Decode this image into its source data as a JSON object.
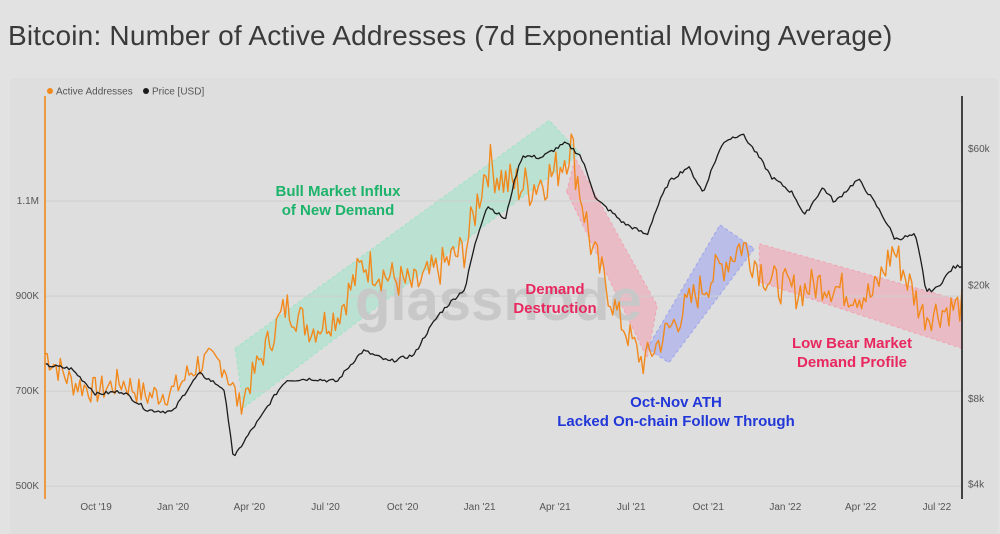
{
  "title": "Bitcoin: Number of Active Addresses (7d Exponential Moving Average)",
  "watermark": "glassnode",
  "colors": {
    "active": "#f2891d",
    "price": "#1c1c1c",
    "green_band": "#9de3c6",
    "red_band": "#f2a0b0",
    "blue_band": "#9aa3ee",
    "green_text": "#1db36b",
    "red_text": "#e8285e",
    "blue_text": "#2237d8"
  },
  "legend": [
    {
      "label": "Active Addresses",
      "color": "#f2891d"
    },
    {
      "label": "Price [USD]",
      "color": "#1c1c1c"
    }
  ],
  "annotations": [
    {
      "lines": [
        "Bull Market Influx",
        "of New Demand"
      ],
      "color": "#1db36b"
    },
    {
      "lines": [
        "Demand",
        "Destruction"
      ],
      "color": "#e8285e"
    },
    {
      "lines": [
        "Low Bear Market",
        "Demand Profile"
      ],
      "color": "#e8285e"
    },
    {
      "lines": [
        "Oct-Nov ATH",
        "Lacked On-chain Follow Through"
      ],
      "color": "#2237d8"
    }
  ],
  "chart_data": {
    "type": "line",
    "x_tick_labels": [
      "Oct '19",
      "Jan '20",
      "Apr '20",
      "Jul '20",
      "Oct '20",
      "Jan '21",
      "Apr '21",
      "Jul '21",
      "Oct '21",
      "Jan '22",
      "Apr '22",
      "Jul '22"
    ],
    "x_range": [
      "2019-08-01",
      "2022-07-31"
    ],
    "y_left": {
      "ticks": [
        "500K",
        "700K",
        "900K",
        "1.1M"
      ],
      "tick_values": [
        500000,
        700000,
        900000,
        1100000
      ],
      "range": [
        490000,
        1300000
      ]
    },
    "y_right": {
      "ticks": [
        "$4k",
        "$8k",
        "$20k",
        "$60k"
      ],
      "tick_values": [
        4000,
        8000,
        20000,
        60000
      ],
      "scale": "log",
      "range": [
        3800,
        85000
      ]
    },
    "series": [
      {
        "name": "Active Addresses",
        "axis": "left",
        "points": [
          [
            "2019-08-01",
            780000
          ],
          [
            "2019-09-01",
            720000
          ],
          [
            "2019-10-01",
            700000
          ],
          [
            "2019-11-01",
            720000
          ],
          [
            "2019-12-01",
            690000
          ],
          [
            "2020-01-01",
            700000
          ],
          [
            "2020-02-01",
            760000
          ],
          [
            "2020-03-01",
            760000
          ],
          [
            "2020-03-20",
            670000
          ],
          [
            "2020-04-15",
            770000
          ],
          [
            "2020-05-15",
            880000
          ],
          [
            "2020-06-15",
            830000
          ],
          [
            "2020-07-15",
            860000
          ],
          [
            "2020-08-15",
            970000
          ],
          [
            "2020-09-15",
            940000
          ],
          [
            "2020-10-15",
            920000
          ],
          [
            "2020-11-15",
            960000
          ],
          [
            "2020-12-15",
            1000000
          ],
          [
            "2021-01-10",
            1180000
          ],
          [
            "2021-02-01",
            1140000
          ],
          [
            "2021-03-01",
            1130000
          ],
          [
            "2021-04-01",
            1160000
          ],
          [
            "2021-04-20",
            1220000
          ],
          [
            "2021-05-15",
            1000000
          ],
          [
            "2021-06-15",
            860000
          ],
          [
            "2021-07-15",
            760000
          ],
          [
            "2021-08-15",
            830000
          ],
          [
            "2021-09-15",
            900000
          ],
          [
            "2021-10-15",
            960000
          ],
          [
            "2021-11-10",
            1010000
          ],
          [
            "2021-12-15",
            930000
          ],
          [
            "2022-01-15",
            910000
          ],
          [
            "2022-02-15",
            930000
          ],
          [
            "2022-03-15",
            910000
          ],
          [
            "2022-04-15",
            900000
          ],
          [
            "2022-05-10",
            1000000
          ],
          [
            "2022-06-15",
            860000
          ],
          [
            "2022-07-31",
            880000
          ]
        ]
      },
      {
        "name": "Price [USD]",
        "axis": "right",
        "points": [
          [
            "2019-08-01",
            10500
          ],
          [
            "2019-09-01",
            10200
          ],
          [
            "2019-10-01",
            8300
          ],
          [
            "2019-11-01",
            8500
          ],
          [
            "2019-12-01",
            7300
          ],
          [
            "2020-01-01",
            7200
          ],
          [
            "2020-02-01",
            9800
          ],
          [
            "2020-03-01",
            8700
          ],
          [
            "2020-03-13",
            4900
          ],
          [
            "2020-04-15",
            6900
          ],
          [
            "2020-05-15",
            9300
          ],
          [
            "2020-06-15",
            9400
          ],
          [
            "2020-07-15",
            9200
          ],
          [
            "2020-08-15",
            11800
          ],
          [
            "2020-09-15",
            10800
          ],
          [
            "2020-10-15",
            11400
          ],
          [
            "2020-11-15",
            16000
          ],
          [
            "2020-12-15",
            19500
          ],
          [
            "2021-01-10",
            38000
          ],
          [
            "2021-02-01",
            34000
          ],
          [
            "2021-02-21",
            57000
          ],
          [
            "2021-03-15",
            56000
          ],
          [
            "2021-04-14",
            63000
          ],
          [
            "2021-05-01",
            57000
          ],
          [
            "2021-05-20",
            40000
          ],
          [
            "2021-06-22",
            33000
          ],
          [
            "2021-07-20",
            30000
          ],
          [
            "2021-08-15",
            46000
          ],
          [
            "2021-09-07",
            52000
          ],
          [
            "2021-09-25",
            42000
          ],
          [
            "2021-10-20",
            64000
          ],
          [
            "2021-11-10",
            68000
          ],
          [
            "2021-12-15",
            48000
          ],
          [
            "2022-01-10",
            42000
          ],
          [
            "2022-01-24",
            35000
          ],
          [
            "2022-02-15",
            44000
          ],
          [
            "2022-03-01",
            39000
          ],
          [
            "2022-03-29",
            47000
          ],
          [
            "2022-04-15",
            40000
          ],
          [
            "2022-05-12",
            29000
          ],
          [
            "2022-06-05",
            30000
          ],
          [
            "2022-06-18",
            19000
          ],
          [
            "2022-07-01",
            19500
          ],
          [
            "2022-07-20",
            23000
          ],
          [
            "2022-07-31",
            23500
          ]
        ]
      }
    ]
  }
}
